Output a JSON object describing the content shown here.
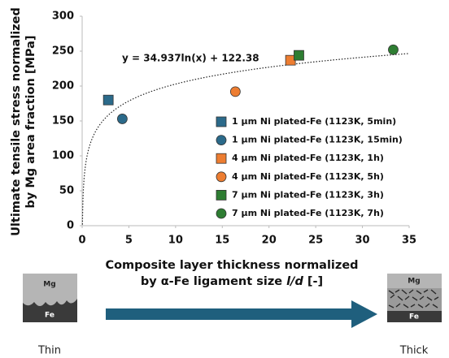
{
  "chart_data": {
    "type": "scatter",
    "y_label": [
      "Ultimate tensile stress normalized",
      "by Mg area fraction [MPa]"
    ],
    "x_label": [
      "Composite layer thickness normalized",
      [
        "by α-Fe ligament size ",
        "l/d",
        " [-]"
      ]
    ],
    "xlim": [
      0,
      35
    ],
    "xticks": [
      0,
      5,
      10,
      15,
      20,
      25,
      30,
      35
    ],
    "ylim": [
      0,
      300
    ],
    "yticks": [
      0,
      50,
      100,
      150,
      200,
      250,
      300
    ],
    "series": [
      {
        "name": "1 μm Ni plated-Fe (1123K, 5min)",
        "color": "#2b6a8a",
        "marker": "square",
        "x": [
          2.8
        ],
        "values": [
          180
        ]
      },
      {
        "name": "1 μm Ni plated-Fe (1123K, 15min)",
        "color": "#2b6a8a",
        "marker": "circle",
        "x": [
          4.3
        ],
        "values": [
          153
        ]
      },
      {
        "name": "4 μm Ni plated-Fe (1123K, 1h)",
        "color": "#ed7d31",
        "marker": "square",
        "x": [
          22.3
        ],
        "values": [
          237
        ]
      },
      {
        "name": "4 μm Ni plated-Fe (1123K, 5h)",
        "color": "#ed7d31",
        "marker": "circle",
        "x": [
          16.4
        ],
        "values": [
          192
        ]
      },
      {
        "name": "7 μm Ni plated-Fe (1123K, 3h)",
        "color": "#2e7d32",
        "marker": "square",
        "x": [
          23.2
        ],
        "values": [
          244
        ]
      },
      {
        "name": "7 μm Ni plated-Fe (1123K, 7h)",
        "color": "#2e7d32",
        "marker": "circle",
        "x": [
          33.3
        ],
        "values": [
          252
        ]
      }
    ],
    "trendline": {
      "label": "y = 34.937ln(x) + 122.38",
      "a": 34.937,
      "b": 122.38
    }
  },
  "illustration": {
    "thin": {
      "caption": "Thin",
      "top": "Mg",
      "bottom": "Fe"
    },
    "thick": {
      "caption": "Thick",
      "top": "Mg",
      "bottom": "Fe"
    }
  }
}
